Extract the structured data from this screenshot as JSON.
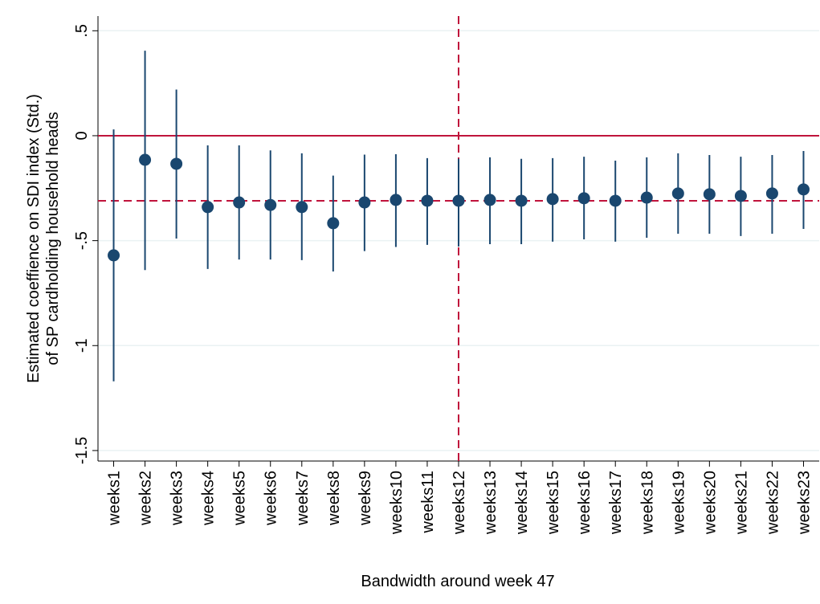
{
  "chart_data": {
    "type": "coefplot",
    "xlabel": "Bandwidth around week 47",
    "ylabel": [
      "Estimated coeffience on SDI index (Std.)",
      "of SP cardholding household heads"
    ],
    "categories": [
      "weeks1",
      "weeks2",
      "weeks3",
      "weeks4",
      "weeks5",
      "weeks6",
      "weeks7",
      "weeks8",
      "weeks9",
      "weeks10",
      "weeks11",
      "weeks12",
      "weeks13",
      "weeks14",
      "weeks15",
      "weeks16",
      "weeks17",
      "weeks18",
      "weeks19",
      "weeks20",
      "weeks21",
      "weeks22",
      "weeks23"
    ],
    "values": [
      -0.57,
      -0.115,
      -0.134,
      -0.34,
      -0.318,
      -0.33,
      -0.34,
      -0.417,
      -0.318,
      -0.306,
      -0.31,
      -0.31,
      -0.306,
      -0.31,
      -0.302,
      -0.298,
      -0.31,
      -0.295,
      -0.275,
      -0.279,
      -0.287,
      -0.275,
      -0.256
    ],
    "ci_low": [
      -1.17,
      -0.64,
      -0.49,
      -0.635,
      -0.59,
      -0.59,
      -0.593,
      -0.647,
      -0.55,
      -0.53,
      -0.52,
      -0.528,
      -0.517,
      -0.517,
      -0.505,
      -0.494,
      -0.505,
      -0.486,
      -0.467,
      -0.467,
      -0.478,
      -0.467,
      -0.444
    ],
    "ci_high": [
      0.03,
      0.405,
      0.22,
      -0.046,
      -0.046,
      -0.07,
      -0.084,
      -0.19,
      -0.09,
      -0.088,
      -0.107,
      -0.11,
      -0.103,
      -0.11,
      -0.107,
      -0.1,
      -0.119,
      -0.103,
      -0.084,
      -0.092,
      -0.1,
      -0.092,
      -0.073
    ],
    "color": "#1a476f",
    "ref_color": "#c0143c",
    "hline_solid": 0,
    "hline_dashed": -0.31,
    "vline_dashed": "weeks12",
    "ylim": [
      -1.55,
      0.57
    ],
    "yticks": [
      {
        "value": 0.5,
        "label": ".5"
      },
      0,
      {
        "value": -0.5,
        "label": "-.5"
      },
      -1,
      -1.5
    ],
    "grid": true
  }
}
